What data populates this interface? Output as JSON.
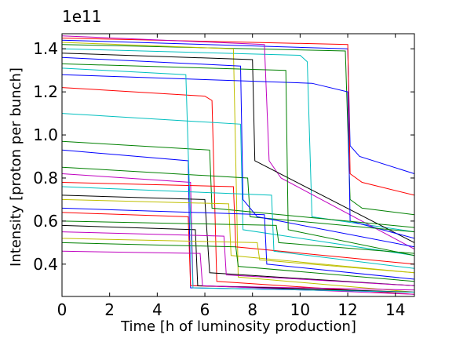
{
  "chart_data": {
    "type": "line",
    "xlabel": "Time [h of luminosity production]",
    "ylabel": "Intensity [proton per bunch]",
    "y_offset_label": "1e11",
    "xlim": [
      0,
      14.8
    ],
    "ylim": [
      0.25,
      1.47
    ],
    "x_ticks": [
      0,
      2,
      4,
      6,
      8,
      10,
      12,
      14
    ],
    "y_ticks": [
      0.4,
      0.6,
      0.8,
      1.0,
      1.2,
      1.4
    ],
    "x_tick_labels": [
      "0",
      "2",
      "4",
      "6",
      "8",
      "10",
      "12",
      "14"
    ],
    "y_tick_labels": [
      "0.4",
      "0.6",
      "0.8",
      "1.0",
      "1.2",
      "1.4"
    ],
    "grid": false,
    "legend": "none",
    "series": [
      {
        "color": "#0000ff",
        "points": [
          [
            0,
            1.44
          ],
          [
            12,
            1.4
          ],
          [
            12.1,
            0.95
          ],
          [
            12.5,
            0.9
          ],
          [
            14.8,
            0.82
          ]
        ]
      },
      {
        "color": "#ff0000",
        "points": [
          [
            0,
            1.45
          ],
          [
            12,
            1.42
          ],
          [
            12.1,
            0.82
          ],
          [
            12.6,
            0.78
          ],
          [
            14.8,
            0.72
          ]
        ]
      },
      {
        "color": "#008000",
        "points": [
          [
            0,
            1.42
          ],
          [
            11.9,
            1.39
          ],
          [
            12.1,
            0.7
          ],
          [
            12.6,
            0.66
          ],
          [
            14.8,
            0.63
          ]
        ]
      },
      {
        "color": "#00bfbf",
        "points": [
          [
            0,
            1.4
          ],
          [
            10,
            1.37
          ],
          [
            10.3,
            1.34
          ],
          [
            10.5,
            0.62
          ],
          [
            14.8,
            0.55
          ]
        ]
      },
      {
        "color": "#bf00bf",
        "points": [
          [
            0,
            1.46
          ],
          [
            8.5,
            1.42
          ],
          [
            8.7,
            0.88
          ],
          [
            9.2,
            0.8
          ],
          [
            14.8,
            0.47
          ]
        ]
      },
      {
        "color": "#bfbf00",
        "points": [
          [
            0,
            1.43
          ],
          [
            7.2,
            1.4
          ],
          [
            7.4,
            0.34
          ],
          [
            14.8,
            0.27
          ]
        ]
      },
      {
        "color": "#000000",
        "points": [
          [
            0,
            1.38
          ],
          [
            8,
            1.35
          ],
          [
            8.1,
            0.88
          ],
          [
            14.8,
            0.5
          ]
        ]
      },
      {
        "color": "#0000ff",
        "points": [
          [
            0,
            1.28
          ],
          [
            10.5,
            1.24
          ],
          [
            12,
            1.2
          ],
          [
            12.1,
            0.6
          ],
          [
            14.8,
            0.52
          ]
        ]
      },
      {
        "color": "#ff0000",
        "points": [
          [
            0,
            1.22
          ],
          [
            6,
            1.18
          ],
          [
            6.3,
            1.16
          ],
          [
            6.5,
            0.32
          ],
          [
            14.8,
            0.26
          ]
        ]
      },
      {
        "color": "#00bfbf",
        "points": [
          [
            0,
            1.1
          ],
          [
            7.5,
            1.05
          ],
          [
            7.6,
            0.56
          ],
          [
            14.8,
            0.44
          ]
        ]
      },
      {
        "color": "#008000",
        "points": [
          [
            0,
            0.97
          ],
          [
            6.2,
            0.93
          ],
          [
            6.3,
            0.66
          ],
          [
            14.8,
            0.57
          ]
        ]
      },
      {
        "color": "#0000ff",
        "points": [
          [
            0,
            0.93
          ],
          [
            5.3,
            0.88
          ],
          [
            5.4,
            0.29
          ],
          [
            14.8,
            0.27
          ]
        ]
      },
      {
        "color": "#008000",
        "points": [
          [
            0,
            0.85
          ],
          [
            7.8,
            0.8
          ],
          [
            7.9,
            0.62
          ],
          [
            14.8,
            0.55
          ]
        ]
      },
      {
        "color": "#bf00bf",
        "points": [
          [
            0,
            0.82
          ],
          [
            5.4,
            0.78
          ],
          [
            5.5,
            0.3
          ],
          [
            14.8,
            0.28
          ]
        ]
      },
      {
        "color": "#ff0000",
        "points": [
          [
            0,
            0.78
          ],
          [
            7.2,
            0.76
          ],
          [
            7.3,
            0.48
          ],
          [
            14.8,
            0.4
          ]
        ]
      },
      {
        "color": "#00bfbf",
        "points": [
          [
            0,
            0.76
          ],
          [
            8.8,
            0.72
          ],
          [
            8.9,
            0.46
          ],
          [
            14.8,
            0.38
          ]
        ]
      },
      {
        "color": "#000000",
        "points": [
          [
            0,
            0.72
          ],
          [
            6.0,
            0.7
          ],
          [
            6.2,
            0.36
          ],
          [
            14.8,
            0.3
          ]
        ]
      },
      {
        "color": "#bfbf00",
        "points": [
          [
            0,
            0.7
          ],
          [
            7.0,
            0.68
          ],
          [
            7.1,
            0.44
          ],
          [
            14.8,
            0.36
          ]
        ]
      },
      {
        "color": "#0000ff",
        "points": [
          [
            0,
            0.66
          ],
          [
            8.5,
            0.63
          ],
          [
            8.6,
            0.4
          ],
          [
            14.8,
            0.33
          ]
        ]
      },
      {
        "color": "#ff0000",
        "points": [
          [
            0,
            0.64
          ],
          [
            5.3,
            0.62
          ],
          [
            5.4,
            0.3
          ],
          [
            14.8,
            0.27
          ]
        ]
      },
      {
        "color": "#008000",
        "points": [
          [
            0,
            0.6
          ],
          [
            9.0,
            0.58
          ],
          [
            9.1,
            0.5
          ],
          [
            14.8,
            0.45
          ]
        ]
      },
      {
        "color": "#000000",
        "points": [
          [
            0,
            0.58
          ],
          [
            5.6,
            0.56
          ],
          [
            5.7,
            0.3
          ],
          [
            14.8,
            0.27
          ]
        ]
      },
      {
        "color": "#bf00bf",
        "points": [
          [
            0,
            0.55
          ],
          [
            6.8,
            0.53
          ],
          [
            6.9,
            0.35
          ],
          [
            14.8,
            0.3
          ]
        ]
      },
      {
        "color": "#bfbf00",
        "points": [
          [
            0,
            0.52
          ],
          [
            8.2,
            0.5
          ],
          [
            8.3,
            0.42
          ],
          [
            14.8,
            0.36
          ]
        ]
      },
      {
        "color": "#008000",
        "points": [
          [
            0,
            0.5
          ],
          [
            7.3,
            0.48
          ],
          [
            7.4,
            0.39
          ],
          [
            14.8,
            0.32
          ]
        ]
      },
      {
        "color": "#bf00bf",
        "points": [
          [
            0,
            0.46
          ],
          [
            5.8,
            0.45
          ],
          [
            5.9,
            0.3
          ],
          [
            14.8,
            0.26
          ]
        ]
      },
      {
        "color": "#0000ff",
        "points": [
          [
            0,
            1.36
          ],
          [
            7.5,
            1.32
          ],
          [
            7.6,
            0.7
          ],
          [
            8.2,
            0.62
          ],
          [
            14.8,
            0.48
          ]
        ]
      },
      {
        "color": "#008000",
        "points": [
          [
            0,
            1.33
          ],
          [
            9.4,
            1.3
          ],
          [
            9.5,
            0.56
          ],
          [
            14.8,
            0.44
          ]
        ]
      },
      {
        "color": "#00bfbf",
        "points": [
          [
            0,
            1.31
          ],
          [
            5.2,
            1.28
          ],
          [
            5.3,
            0.92
          ],
          [
            5.5,
            0.29
          ],
          [
            14.8,
            0.27
          ]
        ]
      }
    ]
  }
}
